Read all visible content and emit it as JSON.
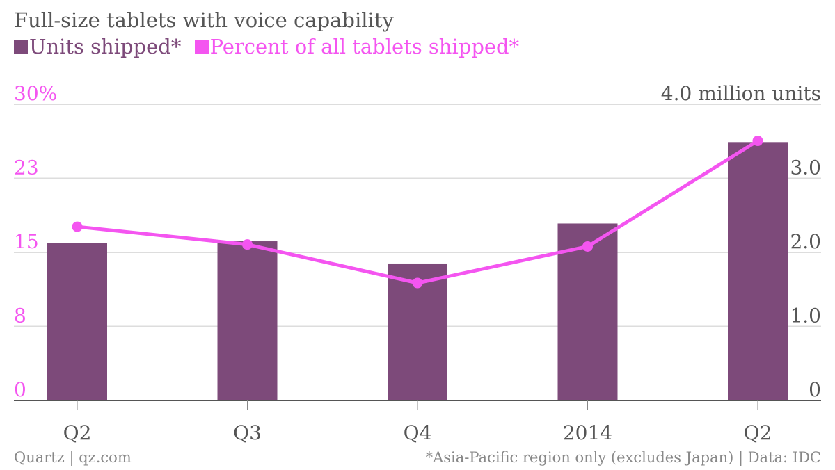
{
  "chart_data": {
    "type": "bar",
    "title": "Full-size tablets with voice capability",
    "categories": [
      "Q2",
      "Q3",
      "Q4",
      "2014",
      "Q2"
    ],
    "series": [
      {
        "name": "Units shipped*",
        "type": "bar",
        "axis": "right",
        "color": "#7d4a7a",
        "values": [
          2.13,
          2.15,
          1.85,
          2.39,
          3.49
        ]
      },
      {
        "name": "Percent of all tablets shipped*",
        "type": "line",
        "axis": "left",
        "color": "#f455f0",
        "values": [
          17.6,
          15.8,
          11.9,
          15.6,
          26.3
        ]
      }
    ],
    "left_axis": {
      "ticks": [
        "30%",
        "23",
        "15",
        "8",
        "0"
      ],
      "tick_values": [
        30,
        22.5,
        15,
        7.5,
        0
      ],
      "range": [
        0,
        30
      ],
      "color": "#f455f0"
    },
    "right_axis": {
      "ticks": [
        "4.0 million units",
        "3.0",
        "2.0",
        "1.0",
        "0"
      ],
      "tick_values": [
        4,
        3,
        2,
        1,
        0
      ],
      "range": [
        0,
        4
      ],
      "color": "#555555"
    },
    "grid": true,
    "legend_position": "top-left"
  },
  "footer": {
    "source_left": "Quartz | qz.com",
    "source_right": "*Asia-Pacific region only (excludes Japan) | Data: IDC"
  }
}
